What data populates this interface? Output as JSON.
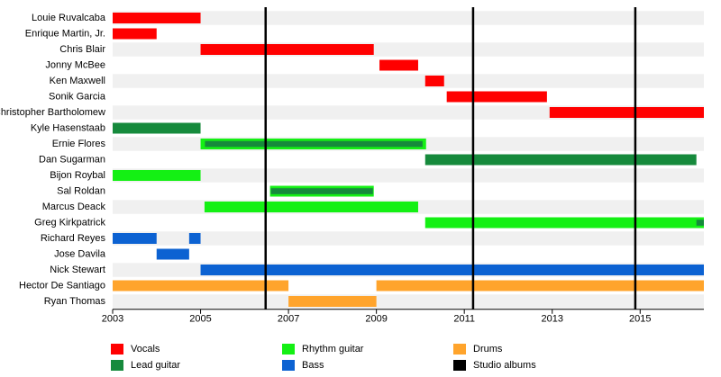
{
  "chart_data": {
    "type": "timeline",
    "categories": [
      "Louie Ruvalcaba",
      "Enrique Martin, Jr.",
      "Chris Blair",
      "Jonny McBee",
      "Ken Maxwell",
      "Sonik Garcia",
      "Christopher Bartholomew",
      "Kyle Hasenstaab",
      "Ernie Flores",
      "Dan Sugarman",
      "Bijon Roybal",
      "Sal Roldan",
      "Marcus Deack",
      "Greg Kirkpatrick",
      "Richard Reyes",
      "Jose Davila",
      "Nick Stewart",
      "Hector De Santiago",
      "Ryan Thomas"
    ],
    "series": [
      {
        "name": "Vocals",
        "color": "#ff0000",
        "values": [
          [
            [
              2003,
              2005
            ]
          ],
          [
            [
              2003,
              2004
            ]
          ],
          [
            [
              2005,
              2008.94
            ]
          ],
          [
            [
              2009.07,
              2009.95
            ]
          ],
          [
            [
              2010.11,
              2010.54
            ]
          ],
          [
            [
              2010.6,
              2012.88
            ]
          ],
          [
            [
              2012.94,
              2016.45
            ]
          ],
          null,
          null,
          null,
          null,
          null,
          null,
          null,
          null,
          null,
          null,
          null,
          null
        ]
      },
      {
        "name": "Lead guitar",
        "color": "#168a3c",
        "values": [
          null,
          null,
          null,
          null,
          null,
          null,
          null,
          [
            [
              2003,
              2005
            ]
          ],
          [
            [
              2005.1,
              2010.05
            ]
          ],
          [
            [
              2010.11,
              2016.28
            ]
          ],
          null,
          [
            [
              2006.6,
              2008.92
            ]
          ],
          null,
          [
            [
              2016.28,
              2016.45
            ]
          ],
          null,
          null,
          null,
          null,
          null
        ]
      },
      {
        "name": "Rhythm guitar",
        "color": "#14f014",
        "values": [
          null,
          null,
          null,
          null,
          null,
          null,
          null,
          null,
          [
            [
              2005,
              2010.13
            ]
          ],
          null,
          [
            [
              2003,
              2005
            ]
          ],
          [
            [
              2006.58,
              2008.94
            ]
          ],
          [
            [
              2005.09,
              2009.95
            ]
          ],
          [
            [
              2010.11,
              2016.45
            ]
          ],
          null,
          null,
          null,
          null,
          null
        ]
      },
      {
        "name": "Bass",
        "color": "#0c62d2",
        "values": [
          null,
          null,
          null,
          null,
          null,
          null,
          null,
          null,
          null,
          null,
          null,
          null,
          null,
          null,
          [
            [
              2003,
              2004
            ],
            [
              2004.74,
              2005
            ]
          ],
          [
            [
              2004,
              2004.74
            ]
          ],
          [
            [
              2005,
              2016.45
            ]
          ],
          null,
          null
        ]
      },
      {
        "name": "Drums",
        "color": "#ffa42c",
        "values": [
          null,
          null,
          null,
          null,
          null,
          null,
          null,
          null,
          null,
          null,
          null,
          null,
          null,
          null,
          null,
          null,
          null,
          [
            [
              2003,
              2007
            ],
            [
              2009,
              2016.45
            ]
          ],
          [
            [
              2007,
              2009
            ]
          ]
        ]
      }
    ],
    "studio_albums": {
      "name": "Studio albums",
      "color": "#000000",
      "values": [
        2006.48,
        2011.2,
        2014.89
      ]
    },
    "xlim": [
      2003,
      2016.45
    ],
    "xticks": [
      2003,
      2005,
      2007,
      2009,
      2011,
      2013,
      2015
    ]
  }
}
